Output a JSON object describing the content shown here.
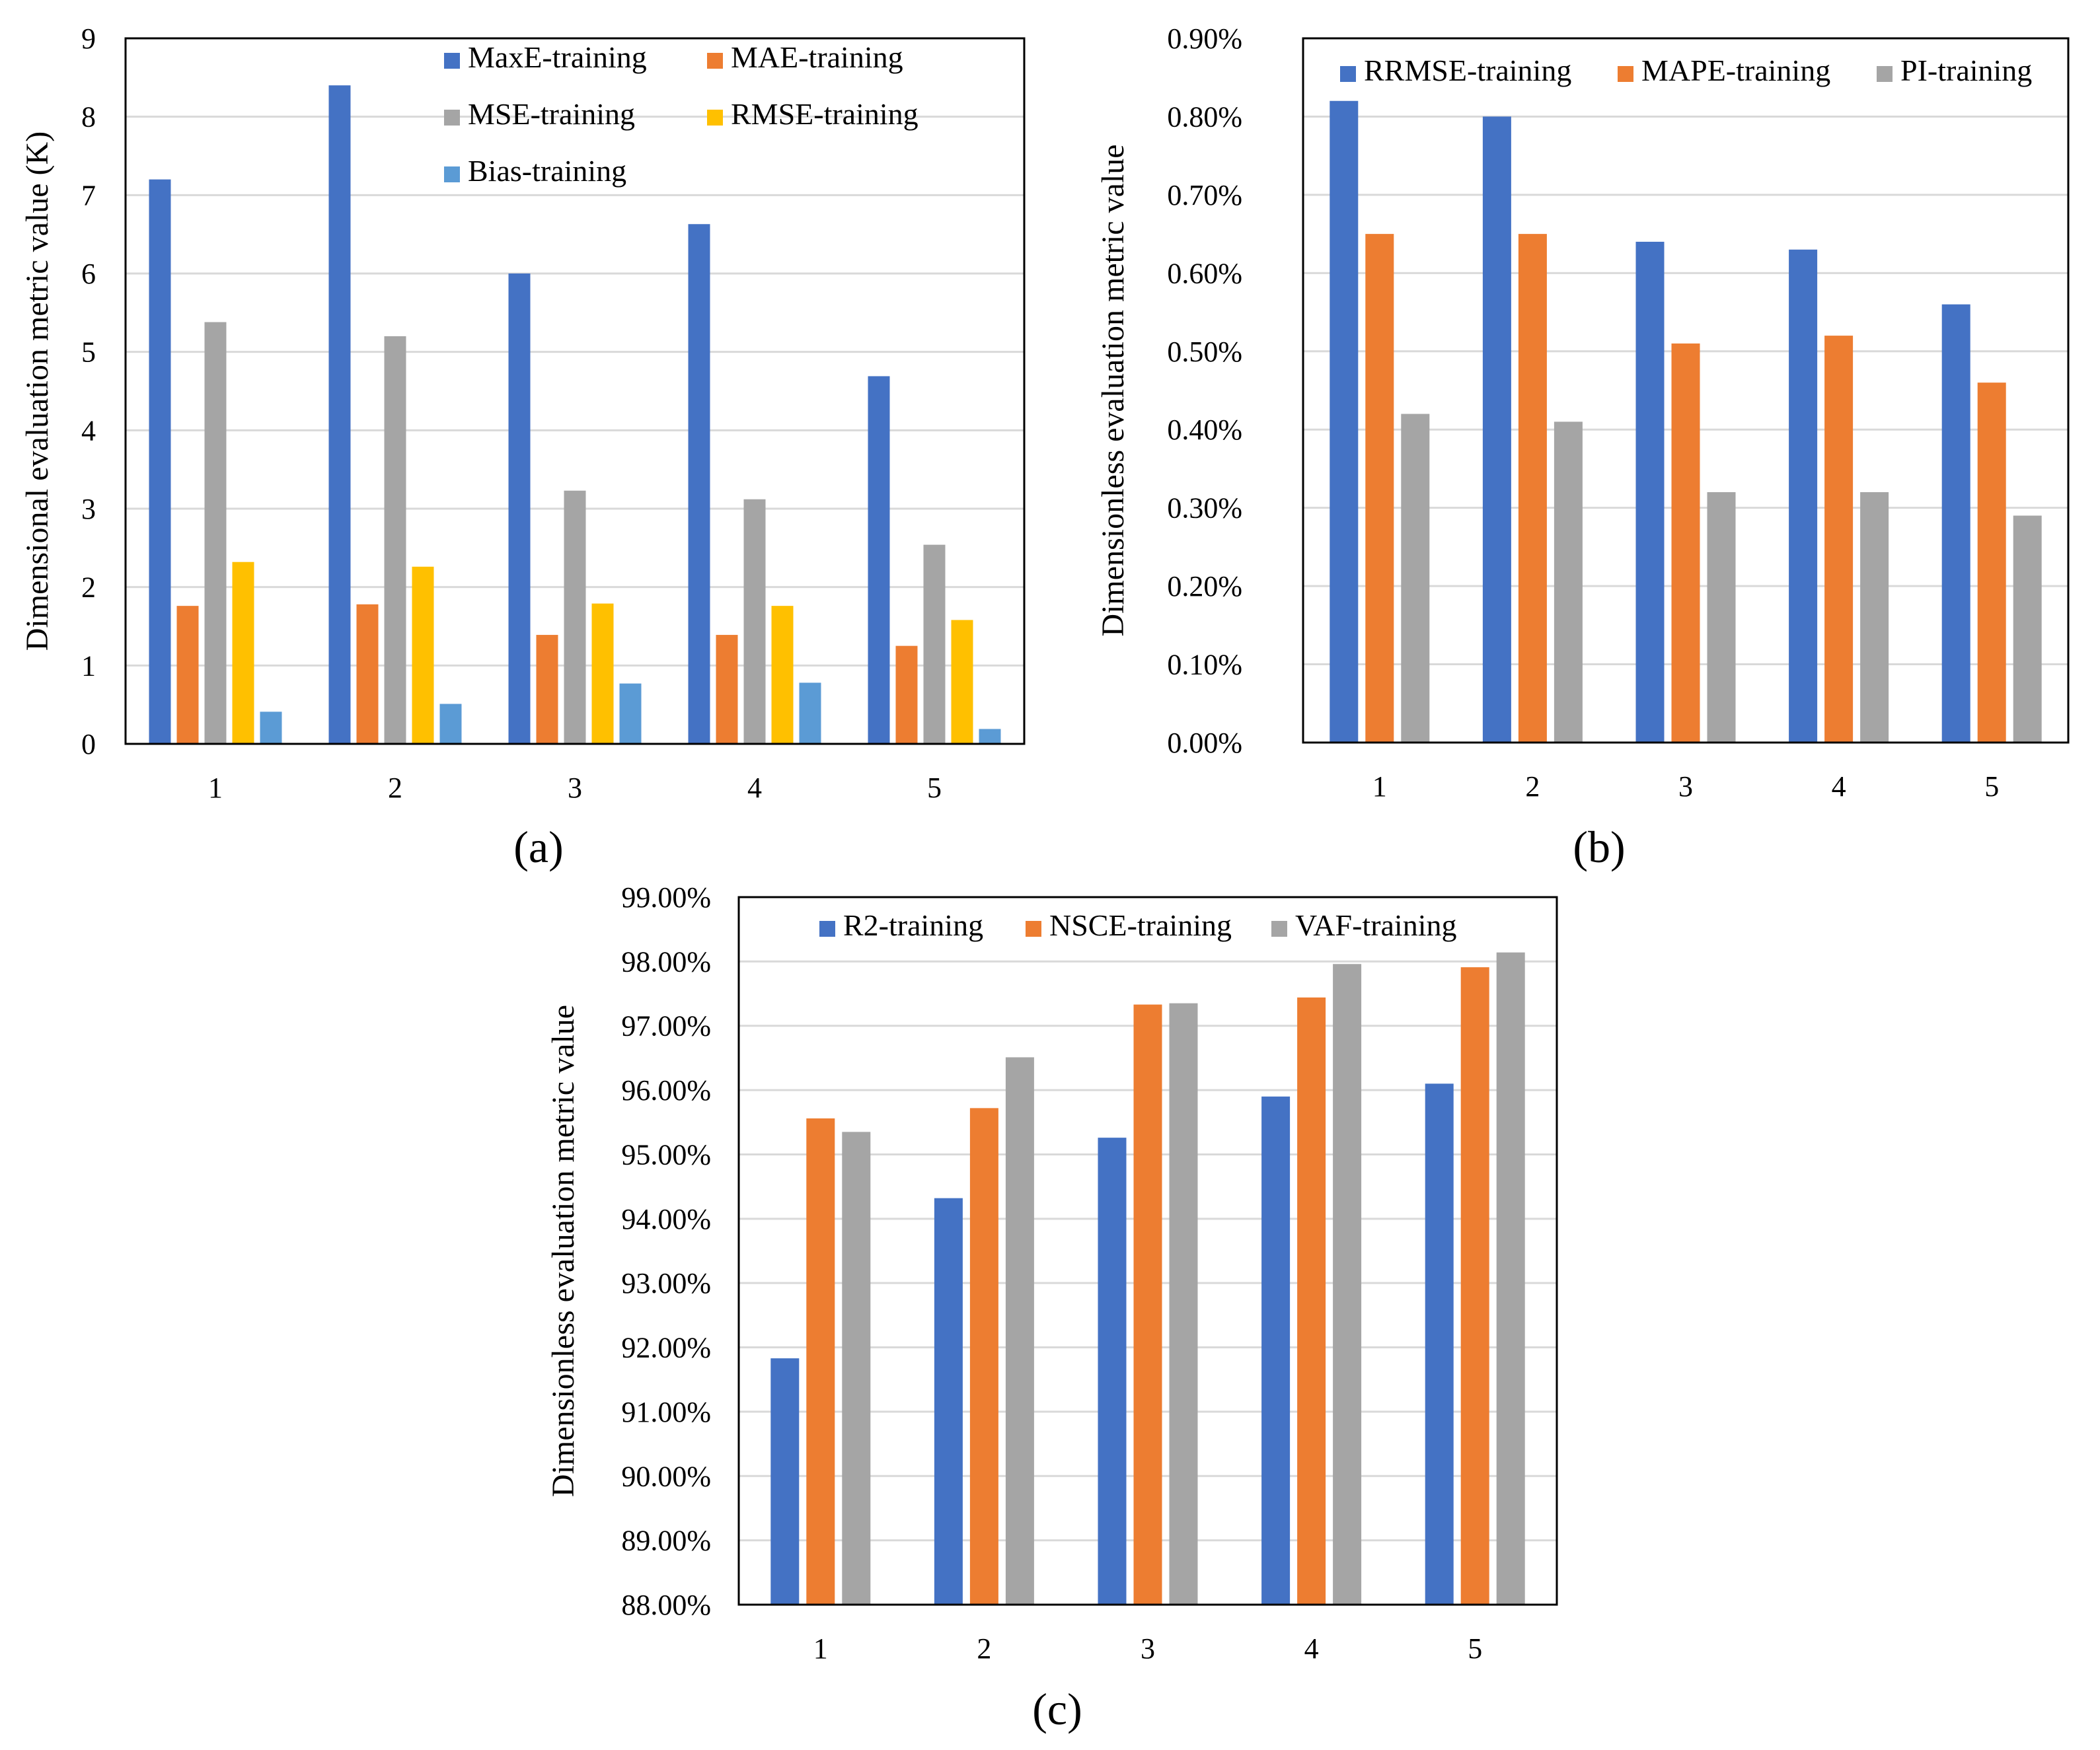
{
  "chart_data": [
    {
      "id": "a",
      "panel_label": "(a)",
      "type": "bar",
      "title": "",
      "xlabel": "",
      "ylabel": "Dimensional evaluation metric value (K)",
      "ylim": [
        0,
        9
      ],
      "yticks": [
        0,
        1,
        2,
        3,
        4,
        5,
        6,
        7,
        8,
        9
      ],
      "ytick_format": "int",
      "categories": [
        "1",
        "2",
        "3",
        "4",
        "5"
      ],
      "grid": true,
      "legend_position": "top-right",
      "series": [
        {
          "name": "MaxE-training",
          "color": "#4472c4",
          "values": [
            7.2,
            8.4,
            6.0,
            6.63,
            4.69
          ]
        },
        {
          "name": "MAE-training",
          "color": "#ed7d31",
          "values": [
            1.76,
            1.78,
            1.39,
            1.39,
            1.25
          ]
        },
        {
          "name": "MSE-training",
          "color": "#a5a5a5",
          "values": [
            5.38,
            5.2,
            3.23,
            3.12,
            2.54
          ]
        },
        {
          "name": "RMSE-training",
          "color": "#ffc000",
          "values": [
            2.32,
            2.26,
            1.79,
            1.76,
            1.58
          ]
        },
        {
          "name": "Bias-training",
          "color": "#5b9bd5",
          "values": [
            0.41,
            0.51,
            0.77,
            0.78,
            0.19
          ]
        }
      ]
    },
    {
      "id": "b",
      "panel_label": "(b)",
      "type": "bar",
      "title": "",
      "xlabel": "",
      "ylabel": "Dimensionless evaluation metric value",
      "ylim": [
        0,
        0.9
      ],
      "yticks": [
        0,
        0.1,
        0.2,
        0.3,
        0.4,
        0.5,
        0.6,
        0.7,
        0.8,
        0.9
      ],
      "ytick_format": "percent",
      "categories": [
        "1",
        "2",
        "3",
        "4",
        "5"
      ],
      "grid": true,
      "legend_position": "top",
      "series": [
        {
          "name": "RRMSE-training",
          "color": "#4472c4",
          "values": [
            0.82,
            0.8,
            0.64,
            0.63,
            0.56
          ]
        },
        {
          "name": "MAPE-training",
          "color": "#ed7d31",
          "values": [
            0.65,
            0.65,
            0.51,
            0.52,
            0.46
          ]
        },
        {
          "name": "PI-training",
          "color": "#a5a5a5",
          "values": [
            0.42,
            0.41,
            0.32,
            0.32,
            0.29
          ]
        }
      ]
    },
    {
      "id": "c",
      "panel_label": "(c)",
      "type": "bar",
      "title": "",
      "xlabel": "",
      "ylabel": "Dimensionless evaluation metric value",
      "ylim": [
        88,
        99
      ],
      "yticks": [
        88,
        89,
        90,
        91,
        92,
        93,
        94,
        95,
        96,
        97,
        98,
        99
      ],
      "ytick_format": "percent",
      "categories": [
        "1",
        "2",
        "3",
        "4",
        "5"
      ],
      "grid": true,
      "legend_position": "top",
      "series": [
        {
          "name": "R2-training",
          "color": "#4472c4",
          "values": [
            91.83,
            94.32,
            95.26,
            95.9,
            96.1
          ]
        },
        {
          "name": "NSCE-training",
          "color": "#ed7d31",
          "values": [
            95.56,
            95.72,
            97.33,
            97.44,
            97.91
          ]
        },
        {
          "name": "VAF-training",
          "color": "#a5a5a5",
          "values": [
            95.35,
            96.51,
            97.35,
            97.96,
            98.14
          ]
        }
      ]
    }
  ]
}
